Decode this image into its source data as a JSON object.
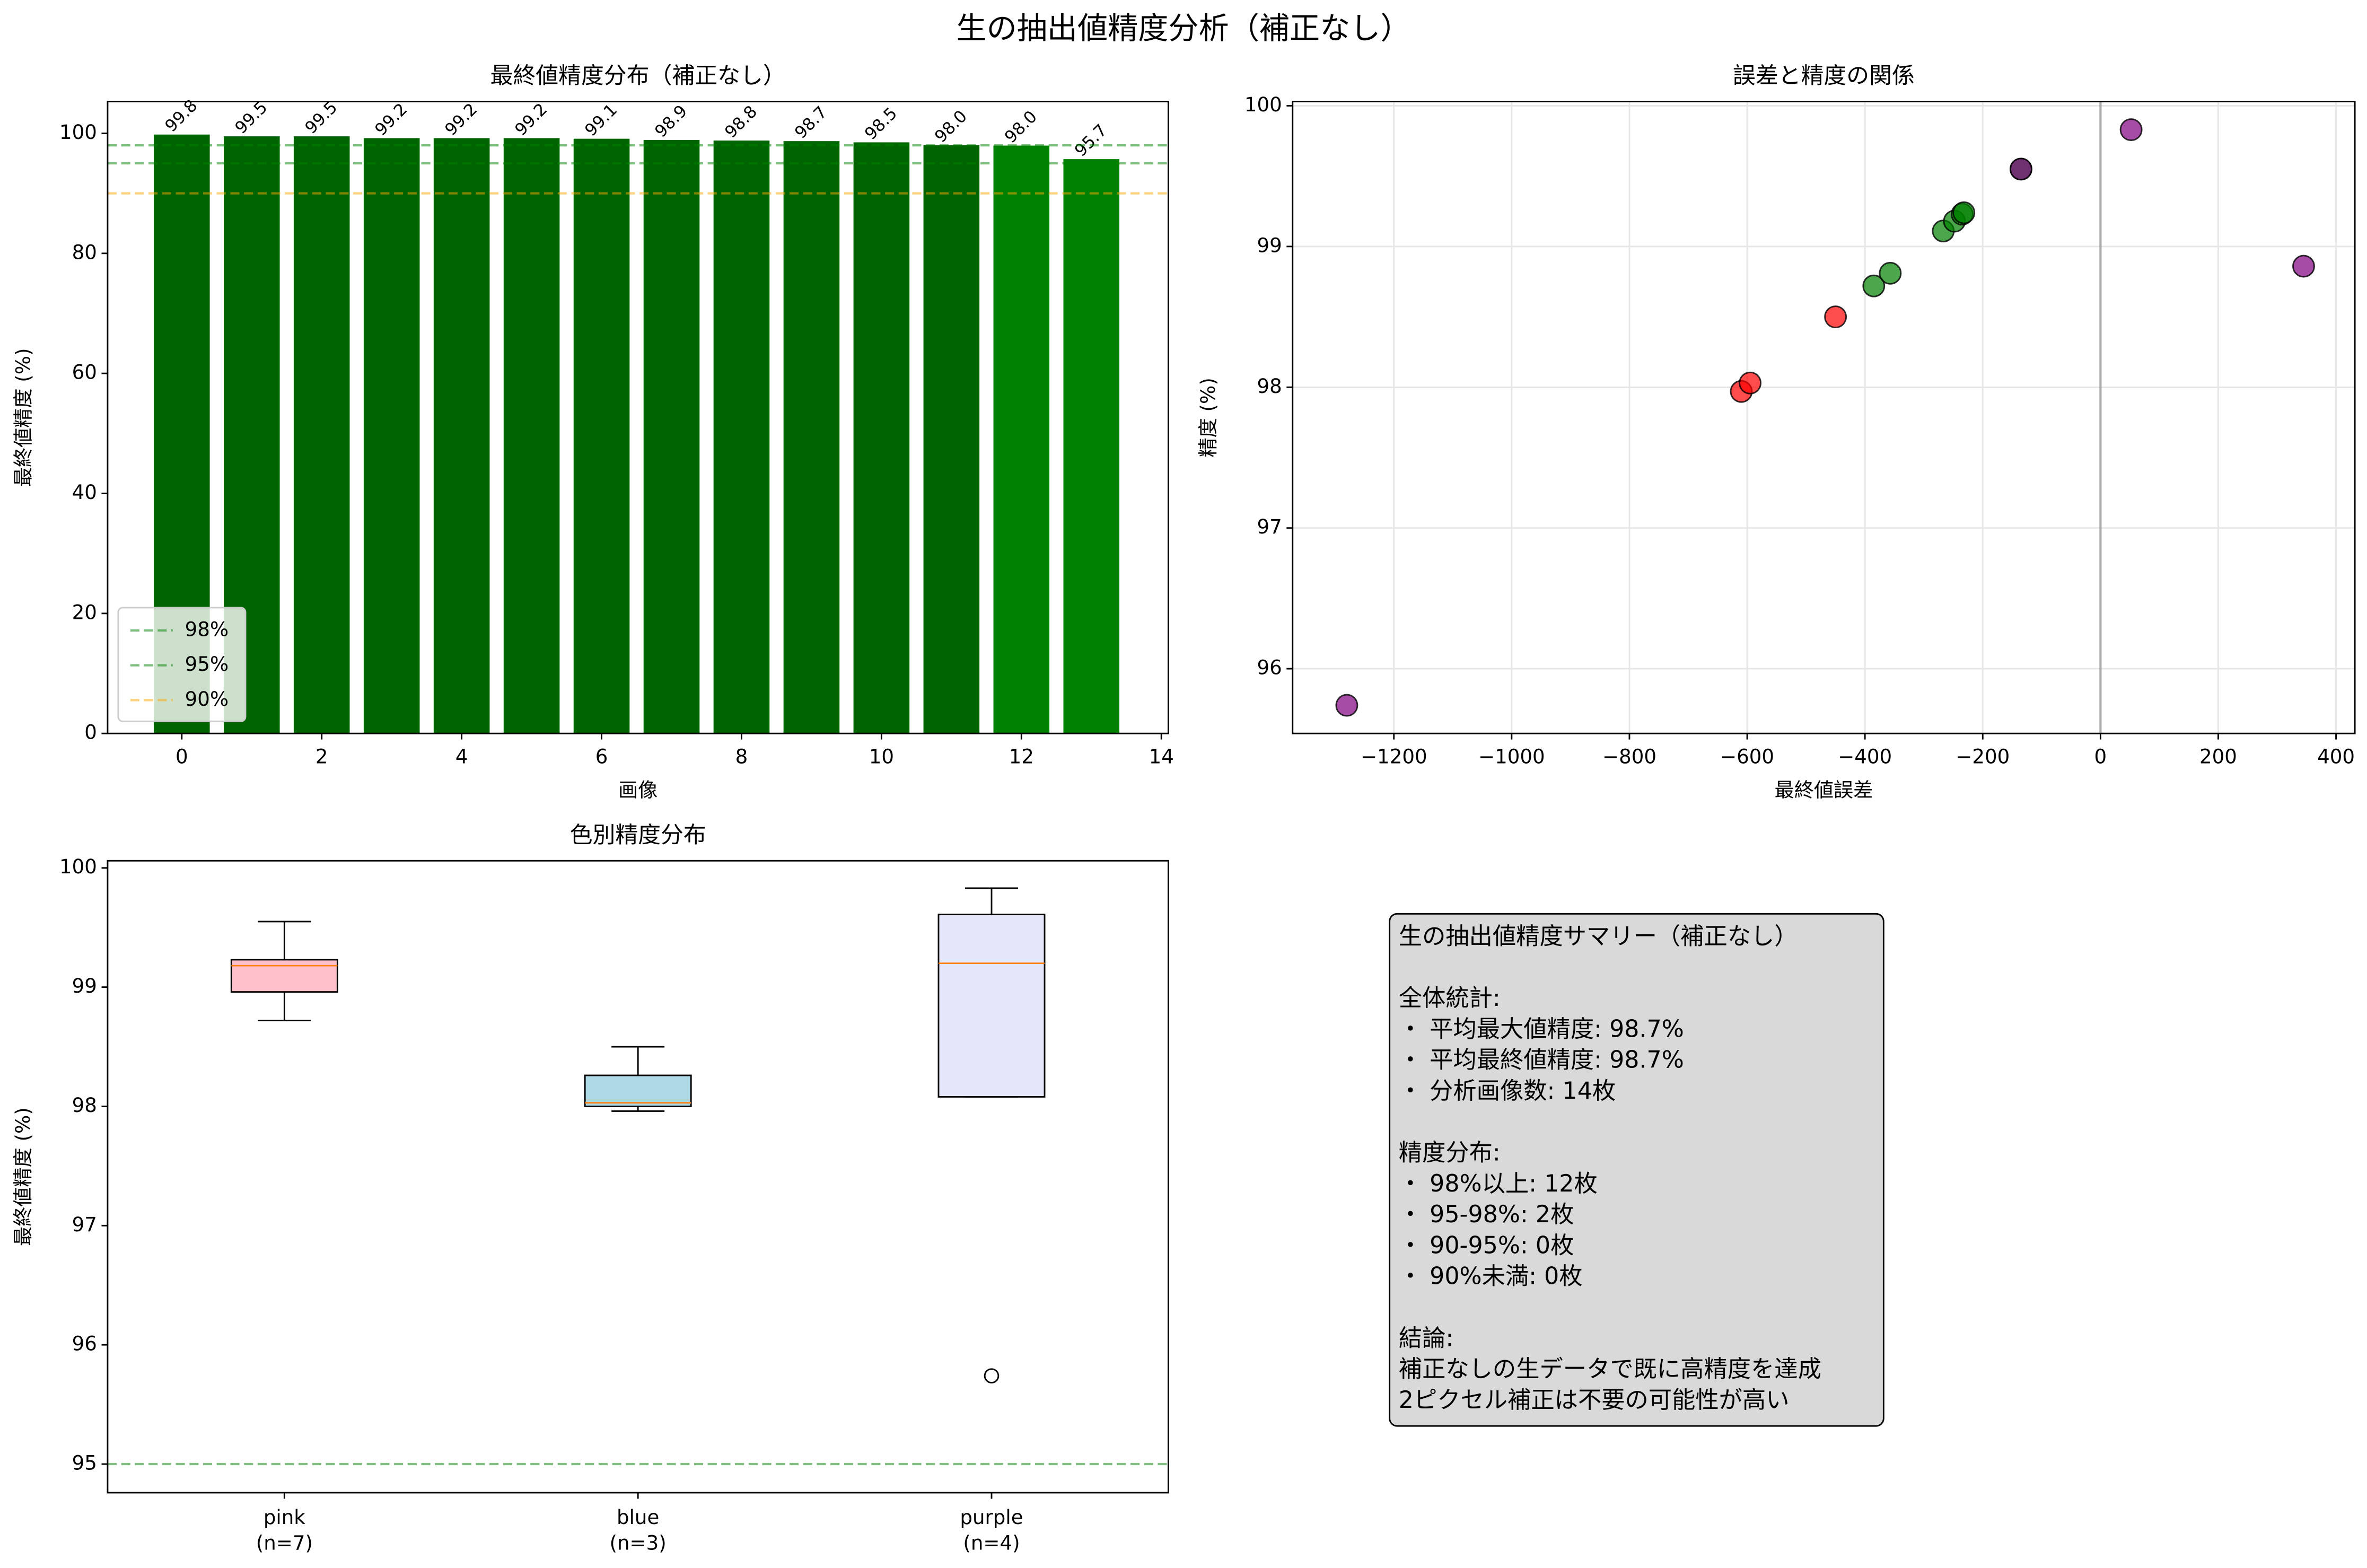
{
  "title": "生の抽出値精度分析（補正なし）",
  "chart_data": [
    {
      "type": "bar",
      "title": "最終値精度分布（補正なし）",
      "xlabel": "画像",
      "ylabel": "最終値精度 (%)",
      "x": [
        0,
        1,
        2,
        3,
        4,
        5,
        6,
        7,
        8,
        9,
        10,
        11,
        12,
        13
      ],
      "values": [
        99.8,
        99.5,
        99.5,
        99.2,
        99.2,
        99.2,
        99.1,
        98.9,
        98.8,
        98.7,
        98.5,
        98.03,
        97.96,
        95.7
      ],
      "value_labels": [
        "99.8",
        "99.5",
        "99.5",
        "99.2",
        "99.2",
        "99.2",
        "99.1",
        "98.9",
        "98.8",
        "98.7",
        "98.5",
        "98.0",
        "98.0",
        "95.7"
      ],
      "colors": [
        "#006400",
        "#006400",
        "#006400",
        "#006400",
        "#006400",
        "#006400",
        "#006400",
        "#006400",
        "#006400",
        "#006400",
        "#006400",
        "#006400",
        "#008000",
        "#008000"
      ],
      "xlim": [
        -1.06,
        14.1
      ],
      "ylim": [
        0,
        105.3
      ],
      "xticks": [
        0,
        2,
        4,
        6,
        8,
        10,
        12,
        14
      ],
      "yticks": [
        0,
        20,
        40,
        60,
        80,
        100
      ],
      "hlines": [
        {
          "y": 98,
          "color": "#008000",
          "label": "98%"
        },
        {
          "y": 95,
          "color": "#008000",
          "label": "95%"
        },
        {
          "y": 90,
          "color": "#ffa500",
          "label": "90%"
        }
      ],
      "legend": "lower left"
    },
    {
      "type": "scatter",
      "title": "誤差と精度の関係",
      "xlabel": "最終値誤差",
      "ylabel": "精度 (%)",
      "series": [
        {
          "color": "#008000",
          "x": [
            -385,
            -357,
            -267,
            -248,
            -235,
            -232,
            -135
          ],
          "values": [
            98.72,
            98.81,
            99.11,
            99.18,
            99.23,
            99.24,
            99.55
          ]
        },
        {
          "color": "#ff0000",
          "x": [
            -610,
            -595,
            -450
          ],
          "values": [
            97.97,
            98.03,
            98.5
          ]
        },
        {
          "color": "#800080",
          "x": [
            -1280,
            -135,
            52,
            345
          ],
          "values": [
            95.74,
            99.55,
            99.83,
            98.86
          ]
        }
      ],
      "xlim": [
        -1372,
        432
      ],
      "ylim": [
        95.54,
        100.03
      ],
      "xticks": [
        {
          "value": -1200,
          "label": "−1200"
        },
        {
          "value": -1000,
          "label": "−1000"
        },
        {
          "value": -800,
          "label": "−800"
        },
        {
          "value": -600,
          "label": "−600"
        },
        {
          "value": -400,
          "label": "−400"
        },
        {
          "value": -200,
          "label": "−200"
        },
        0,
        200,
        400
      ],
      "yticks": [
        96,
        97,
        98,
        99,
        100
      ],
      "vline": 0,
      "grid": true
    },
    {
      "type": "box",
      "title": "色別精度分布",
      "ylabel": "最終値精度 (%)",
      "categories": [
        [
          "pink",
          "(n=7)"
        ],
        [
          "blue",
          "(n=3)"
        ],
        [
          "purple",
          "(n=4)"
        ]
      ],
      "colors": [
        "#ffc0cb",
        "#add8e6",
        "#e6e6fa"
      ],
      "boxes": [
        {
          "whislo": 98.72,
          "q1": 98.96,
          "med": 99.18,
          "q3": 99.23,
          "whishi": 99.55,
          "fliers": []
        },
        {
          "whislo": 97.96,
          "q1": 98.0,
          "med": 98.03,
          "q3": 98.26,
          "whishi": 98.5,
          "fliers": []
        },
        {
          "whislo": 98.08,
          "q1": 98.08,
          "med": 99.2,
          "q3": 99.61,
          "whishi": 99.83,
          "fliers": [
            95.74
          ]
        }
      ],
      "ylim": [
        94.76,
        100.06
      ],
      "yticks": [
        95,
        96,
        97,
        98,
        99,
        100
      ],
      "hline": 95
    }
  ],
  "summary": {
    "paragraphs": [
      [
        "生の抽出値精度サマリー（補正なし）"
      ],
      [
        "全体統計:",
        "・ 平均最大値精度: 98.7%",
        "・ 平均最終値精度: 98.7%",
        "・ 分析画像数: 14枚"
      ],
      [
        "精度分布:",
        "・ 98%以上: 12枚",
        "・ 95-98%: 2枚",
        "・ 90-95%: 0枚",
        "・ 90%未満: 0枚"
      ],
      [
        "結論:",
        "補正なしの生データで既に高精度を達成",
        "2ピクセル補正は不要の可能性が高い"
      ]
    ]
  }
}
